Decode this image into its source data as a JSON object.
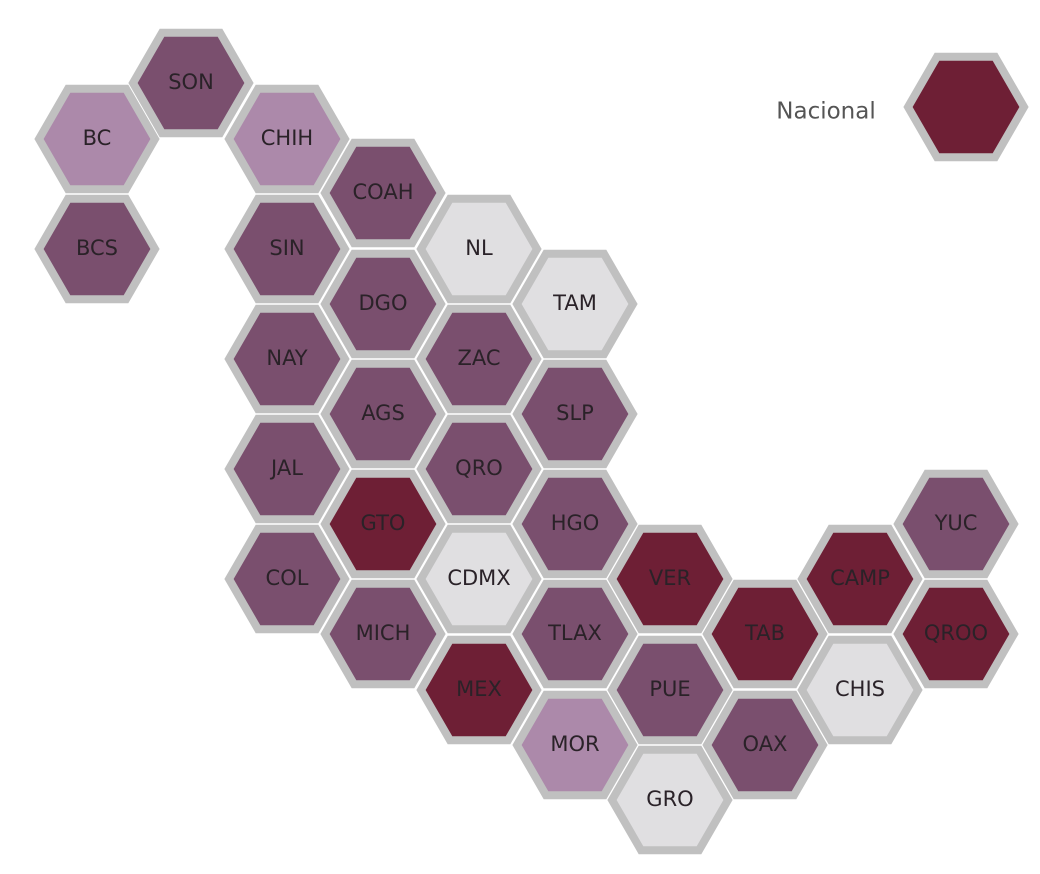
{
  "states": [
    {
      "label": "BC",
      "color": "#ac89aa"
    },
    {
      "label": "BCS",
      "color": "#7a4f6e"
    },
    {
      "label": "SON",
      "color": "#7a4f6e"
    },
    {
      "label": "CHIH",
      "color": "#ac89aa"
    },
    {
      "label": "SIN",
      "color": "#7a4f6e"
    },
    {
      "label": "NAY",
      "color": "#7a4f6e"
    },
    {
      "label": "JAL",
      "color": "#7a4f6e"
    },
    {
      "label": "COL",
      "color": "#7a4f6e"
    },
    {
      "label": "COAH",
      "color": "#7a4f6e"
    },
    {
      "label": "DGO",
      "color": "#7a4f6e"
    },
    {
      "label": "AGS",
      "color": "#7a4f6e"
    },
    {
      "label": "GTO",
      "color": "#6e1f35"
    },
    {
      "label": "MICH",
      "color": "#7a4f6e"
    },
    {
      "label": "NL",
      "color": "#e0dfe1"
    },
    {
      "label": "ZAC",
      "color": "#7a4f6e"
    },
    {
      "label": "QRO",
      "color": "#7a4f6e"
    },
    {
      "label": "CDMX",
      "color": "#e0dfe1"
    },
    {
      "label": "MEX",
      "color": "#6e1f35"
    },
    {
      "label": "TAM",
      "color": "#e0dfe1"
    },
    {
      "label": "SLP",
      "color": "#7a4f6e"
    },
    {
      "label": "HGO",
      "color": "#7a4f6e"
    },
    {
      "label": "TLAX",
      "color": "#7a4f6e"
    },
    {
      "label": "MOR",
      "color": "#ac89aa"
    },
    {
      "label": "VER",
      "color": "#6e1f35"
    },
    {
      "label": "PUE",
      "color": "#7a4f6e"
    },
    {
      "label": "GRO",
      "color": "#e0dfe1"
    },
    {
      "label": "TAB",
      "color": "#6e1f35"
    },
    {
      "label": "OAX",
      "color": "#7a4f6e"
    },
    {
      "label": "CAMP",
      "color": "#6e1f35"
    },
    {
      "label": "CHIS",
      "color": "#e0dfe1"
    },
    {
      "label": "YUC",
      "color": "#7a4f6e"
    },
    {
      "label": "QROO",
      "color": "#6e1f35"
    }
  ],
  "legend": {
    "label": "Nacional",
    "color": "#6e1f35"
  }
}
